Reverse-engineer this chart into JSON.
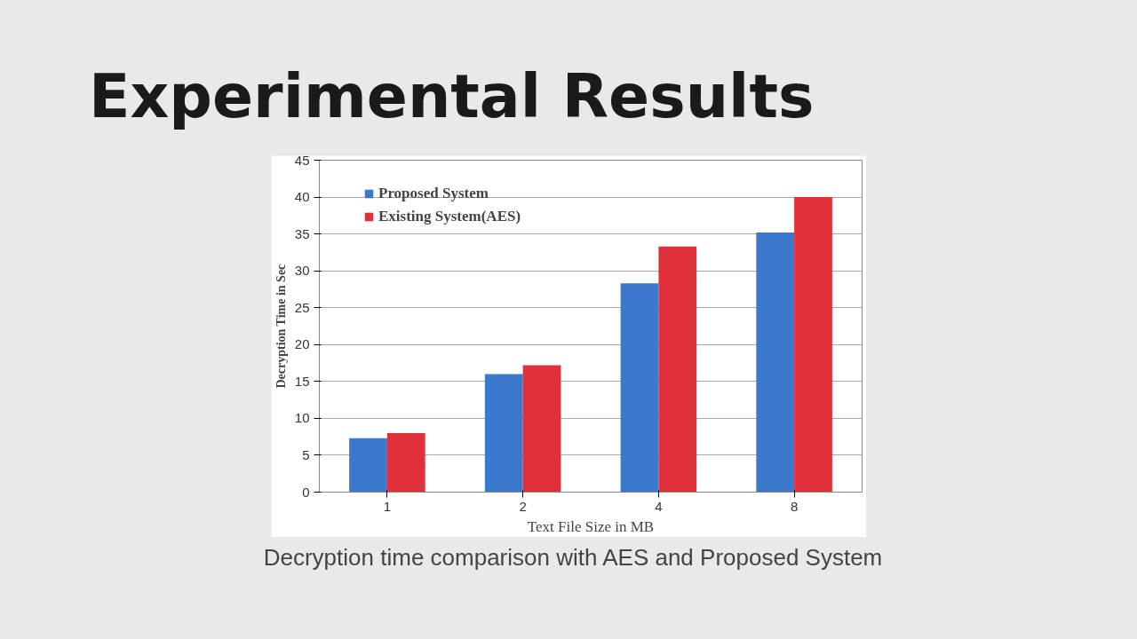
{
  "chart_data": {
    "type": "bar",
    "title": "Experimental Results",
    "xlabel": "Text File Size in MB",
    "ylabel": "Decryption Time in Sec",
    "categories": [
      "1",
      "2",
      "4",
      "8"
    ],
    "series": [
      {
        "name": "Proposed System",
        "color": "#3c78cc",
        "values": [
          7.3,
          16,
          28.3,
          35.2
        ]
      },
      {
        "name": "Existing System(AES)",
        "color": "#e0303a",
        "values": [
          8,
          17.2,
          33.3,
          40
        ]
      }
    ],
    "ylim": [
      0,
      45
    ],
    "yticks": [
      0,
      5,
      10,
      15,
      20,
      25,
      30,
      35,
      40,
      45
    ],
    "grid": "y",
    "legend": "top left",
    "annotations": [
      "Decryption time comparison with AES and Proposed System"
    ]
  }
}
